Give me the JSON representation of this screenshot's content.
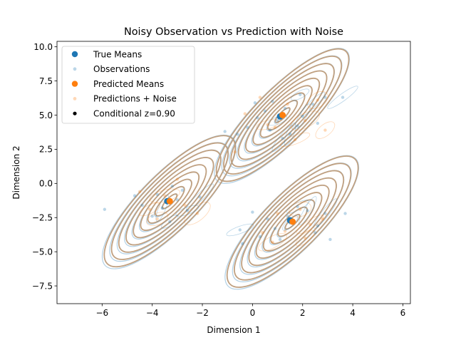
{
  "chart_data": {
    "type": "scatter",
    "title": "Noisy Observation vs Prediction with Noise",
    "xlabel": "Dimension 1",
    "ylabel": "Dimension 2",
    "xlim": [
      -7.8,
      6.3
    ],
    "ylim": [
      -8.8,
      10.4
    ],
    "xticks": [
      "−6",
      "−4",
      "−2",
      "0",
      "2",
      "4",
      "6"
    ],
    "xtick_values": [
      -6,
      -4,
      -2,
      0,
      2,
      4,
      6
    ],
    "yticks": [
      "−7.5",
      "−5.0",
      "−2.5",
      "0.0",
      "2.5",
      "5.0",
      "7.5",
      "10.0"
    ],
    "ytick_values": [
      -7.5,
      -5.0,
      -2.5,
      0.0,
      2.5,
      5.0,
      7.5,
      10.0
    ],
    "grid": false,
    "legend_position": "top-left",
    "colors": {
      "blue": "#1f77b4",
      "orange": "#ff7f0e",
      "contour": "#c0a080",
      "black": "#000000"
    },
    "clusters": [
      {
        "mean": [
          1.2,
          5.0
        ],
        "cov": [
          [
            1.0,
            0.55
          ],
          [
            0.55,
            1.0
          ]
        ]
      },
      {
        "mean": [
          -3.3,
          -1.3
        ],
        "cov": [
          [
            1.0,
            0.5
          ],
          [
            0.5,
            1.0
          ]
        ]
      },
      {
        "mean": [
          1.6,
          -2.8
        ],
        "cov": [
          [
            1.0,
            0.5
          ],
          [
            0.5,
            1.0
          ]
        ]
      }
    ],
    "series": [
      {
        "name": "True Means",
        "marker": "large-dot",
        "color": "#1f77b4",
        "points": [
          [
            1.1,
            4.9
          ],
          [
            -3.4,
            -1.3
          ],
          [
            1.5,
            -2.7
          ]
        ]
      },
      {
        "name": "Observations",
        "marker": "small-faint-dot",
        "color": "#1f77b4",
        "points": [
          [
            1.0,
            4.6
          ],
          [
            0.5,
            5.3
          ],
          [
            1.8,
            4.2
          ],
          [
            2.4,
            5.8
          ],
          [
            -0.2,
            4.1
          ],
          [
            0.8,
            6.0
          ],
          [
            1.5,
            3.6
          ],
          [
            2.9,
            6.3
          ],
          [
            0.2,
            4.8
          ],
          [
            3.6,
            6.3
          ],
          [
            -1.1,
            3.8
          ],
          [
            1.3,
            5.5
          ],
          [
            2.0,
            4.9
          ],
          [
            0.7,
            3.9
          ],
          [
            -0.6,
            3.6
          ],
          [
            1.9,
            6.5
          ],
          [
            0.1,
            5.9
          ],
          [
            2.6,
            4.4
          ],
          [
            1.2,
            3.3
          ],
          [
            -3.0,
            -1.2
          ],
          [
            -3.8,
            -0.8
          ],
          [
            -2.6,
            -2.0
          ],
          [
            -4.4,
            -1.6
          ],
          [
            -3.2,
            -0.2
          ],
          [
            -2.1,
            -1.0
          ],
          [
            -4.0,
            -2.4
          ],
          [
            -5.9,
            -1.9
          ],
          [
            -3.6,
            -1.8
          ],
          [
            -2.8,
            -0.5
          ],
          [
            -4.7,
            -0.9
          ],
          [
            -3.3,
            -2.8
          ],
          [
            1.4,
            -2.4
          ],
          [
            0.9,
            -3.3
          ],
          [
            2.2,
            -2.0
          ],
          [
            0.3,
            -3.9
          ],
          [
            2.6,
            -3.1
          ],
          [
            1.8,
            -1.7
          ],
          [
            0.6,
            -2.6
          ],
          [
            -0.4,
            -4.4
          ],
          [
            2.9,
            -2.2
          ],
          [
            3.7,
            -2.2
          ],
          [
            1.1,
            -4.1
          ],
          [
            -0.5,
            -3.4
          ],
          [
            2.5,
            -3.6
          ],
          [
            3.1,
            -4.1
          ],
          [
            1.5,
            -2.9
          ],
          [
            0.0,
            -2.1
          ]
        ]
      },
      {
        "name": "Predicted Means",
        "marker": "large-dot",
        "color": "#ff7f0e",
        "points": [
          [
            1.2,
            5.0
          ],
          [
            -3.3,
            -1.3
          ],
          [
            1.6,
            -2.8
          ]
        ]
      },
      {
        "name": "Predictions + Noise",
        "marker": "small-faint-dot",
        "color": "#ff7f0e",
        "points": [
          [
            0.6,
            4.3
          ],
          [
            1.4,
            5.8
          ],
          [
            2.1,
            4.6
          ],
          [
            -0.7,
            2.3
          ],
          [
            2.9,
            3.9
          ],
          [
            0.3,
            6.3
          ],
          [
            1.7,
            3.2
          ],
          [
            -0.3,
            5.1
          ],
          [
            2.6,
            6.1
          ],
          [
            0.9,
            4.1
          ],
          [
            -3.5,
            -0.9
          ],
          [
            -2.7,
            -1.6
          ],
          [
            -4.1,
            -1.9
          ],
          [
            -3.0,
            0.3
          ],
          [
            -2.2,
            -2.2
          ],
          [
            -4.5,
            -0.6
          ],
          [
            -3.8,
            -2.6
          ],
          [
            1.0,
            -2.2
          ],
          [
            2.3,
            -3.0
          ],
          [
            0.4,
            -3.6
          ],
          [
            1.9,
            -1.9
          ],
          [
            2.8,
            -2.6
          ],
          [
            0.8,
            -4.3
          ],
          [
            1.3,
            -3.5
          ],
          [
            2.1,
            -4.0
          ]
        ]
      },
      {
        "name": "Conditional z=0.90",
        "marker": "black-dot",
        "color": "#000000",
        "points": []
      }
    ]
  }
}
